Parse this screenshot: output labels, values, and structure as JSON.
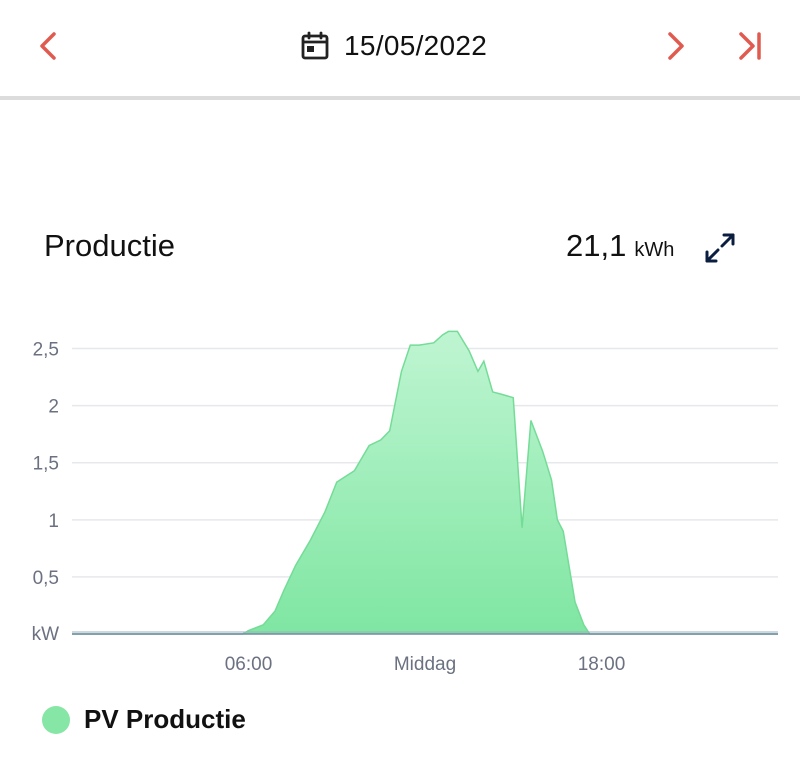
{
  "header": {
    "date": "15/05/2022",
    "icons": {
      "prev": "chevron-left-icon",
      "calendar": "calendar-icon",
      "next": "chevron-right-icon",
      "last": "skip-to-end-icon"
    },
    "accent_color": "#e05a4f"
  },
  "card": {
    "title": "Productie",
    "total_value": "21,1",
    "total_unit": "kWh",
    "expand_icon": "expand-icon"
  },
  "chart_data": {
    "type": "area",
    "yunit_label": "kW",
    "ylim": [
      0,
      2.75
    ],
    "xlim": [
      0,
      24
    ],
    "y_ticks": [
      {
        "value": 0.5,
        "label": "0,5"
      },
      {
        "value": 1,
        "label": "1"
      },
      {
        "value": 1.5,
        "label": "1,5"
      },
      {
        "value": 2,
        "label": "2"
      },
      {
        "value": 2.5,
        "label": "2,5"
      }
    ],
    "x_ticks": [
      {
        "value": 6,
        "label": "06:00"
      },
      {
        "value": 12,
        "label": "Middag"
      },
      {
        "value": 18,
        "label": "18:00"
      }
    ],
    "grid": true,
    "series": [
      {
        "name": "PV Productie",
        "color": "#86e6a5",
        "x": [
          0,
          5.8,
          6.0,
          6.5,
          6.9,
          7.2,
          7.6,
          8.1,
          8.6,
          9.0,
          9.6,
          10.1,
          10.5,
          10.8,
          11.2,
          11.5,
          11.8,
          12.3,
          12.6,
          12.8,
          13.1,
          13.5,
          13.8,
          14.0,
          14.3,
          14.6,
          15.0,
          15.3,
          15.6,
          16.0,
          16.3,
          16.5,
          16.7,
          17.1,
          17.4,
          17.6,
          17.8,
          18.0,
          18.3,
          18.8,
          19.2,
          19.6,
          19.8,
          20.0,
          20.3,
          20.6,
          21.0,
          24.0
        ],
        "y": [
          0,
          0,
          0.03,
          0.08,
          0.2,
          0.38,
          0.6,
          0.82,
          1.07,
          1.33,
          1.43,
          1.65,
          1.7,
          1.78,
          2.3,
          2.53,
          2.53,
          2.55,
          2.62,
          2.65,
          2.65,
          2.48,
          2.3,
          2.39,
          2.12,
          2.1,
          2.07,
          0.93,
          1.87,
          1.6,
          1.35,
          1.0,
          0.9,
          0.28,
          0.08,
          0.0,
          0.0,
          0.0,
          0.0,
          0.0,
          0.0,
          0.0,
          0.0,
          0.0,
          0.0,
          0.0,
          0.0,
          0.0
        ]
      }
    ]
  },
  "legend": {
    "items": [
      {
        "label": "PV Productie",
        "color": "#86e6a5"
      }
    ]
  }
}
